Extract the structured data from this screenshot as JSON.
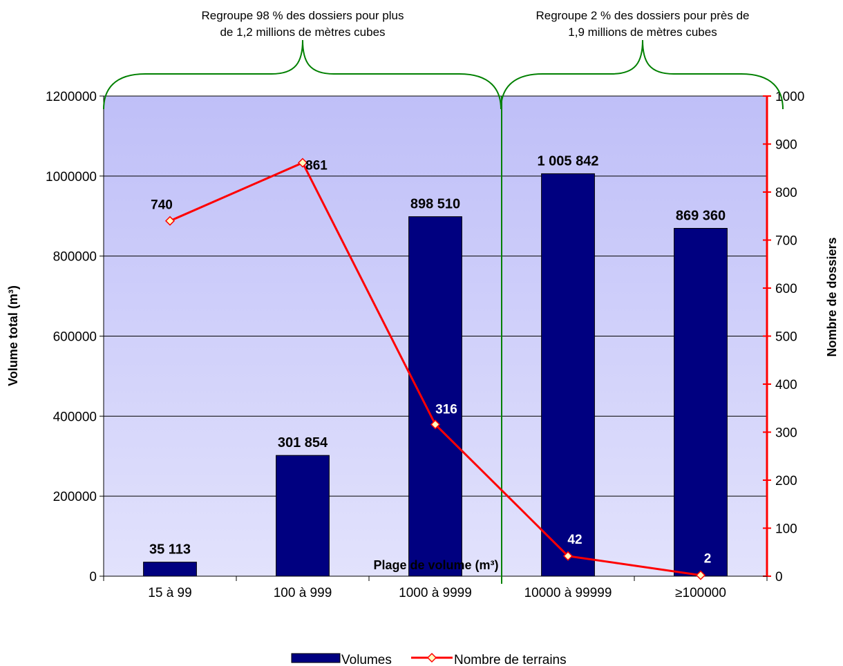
{
  "chart_data": {
    "type": "bar",
    "categories": [
      "15 à 99",
      "100 à 999",
      "1000 à 9999",
      "10000 à 99999",
      "≥100000"
    ],
    "series": [
      {
        "name": "Volumes",
        "kind": "bar",
        "axis": "left",
        "color": "#000080",
        "values": [
          35113,
          301854,
          898510,
          1005842,
          869360
        ],
        "labels": [
          "35 113",
          "301 854",
          "898 510",
          "1 005 842",
          "869 360"
        ]
      },
      {
        "name": "Nombre de terrains",
        "kind": "line",
        "axis": "right",
        "color": "#ff0000",
        "marker": "diamond",
        "values": [
          740,
          861,
          316,
          42,
          2
        ],
        "labels": [
          "740",
          "861",
          "316",
          "42",
          "2"
        ],
        "label_colors": [
          "#000000",
          "#000000",
          "#ffffff",
          "#ffffff",
          "#ffffff"
        ]
      }
    ],
    "xlabel": "Plage de volume (m³)",
    "ylabel": "Volume  total (m³)",
    "y2label": "Nombre de dossiers",
    "ylim": [
      0,
      1200000
    ],
    "y2lim": [
      0,
      1000
    ],
    "yticks": [
      "0",
      "200000",
      "400000",
      "600000",
      "800000",
      "1000000",
      "1200000"
    ],
    "y2ticks": [
      "0",
      "100",
      "200",
      "300",
      "400",
      "500",
      "600",
      "700",
      "800",
      "900",
      "1000"
    ],
    "grid": true,
    "legend_position": "bottom",
    "annotations": [
      {
        "text_line1": "Regroupe 98 % des dossiers pour plus",
        "text_line2": "de 1,2 millions de mètres cubes"
      },
      {
        "text_line1": "Regroupe 2 % des dossiers pour près de",
        "text_line2": "1,9 millions de mètres cubes"
      }
    ],
    "colors": {
      "plot_top": "#bfbff8",
      "plot_bottom": "#e2e2fc",
      "bar": "#000080",
      "line": "#ff0000",
      "marker_fill": "#ffffc0",
      "brace": "#008000",
      "divider": "#008000"
    }
  }
}
